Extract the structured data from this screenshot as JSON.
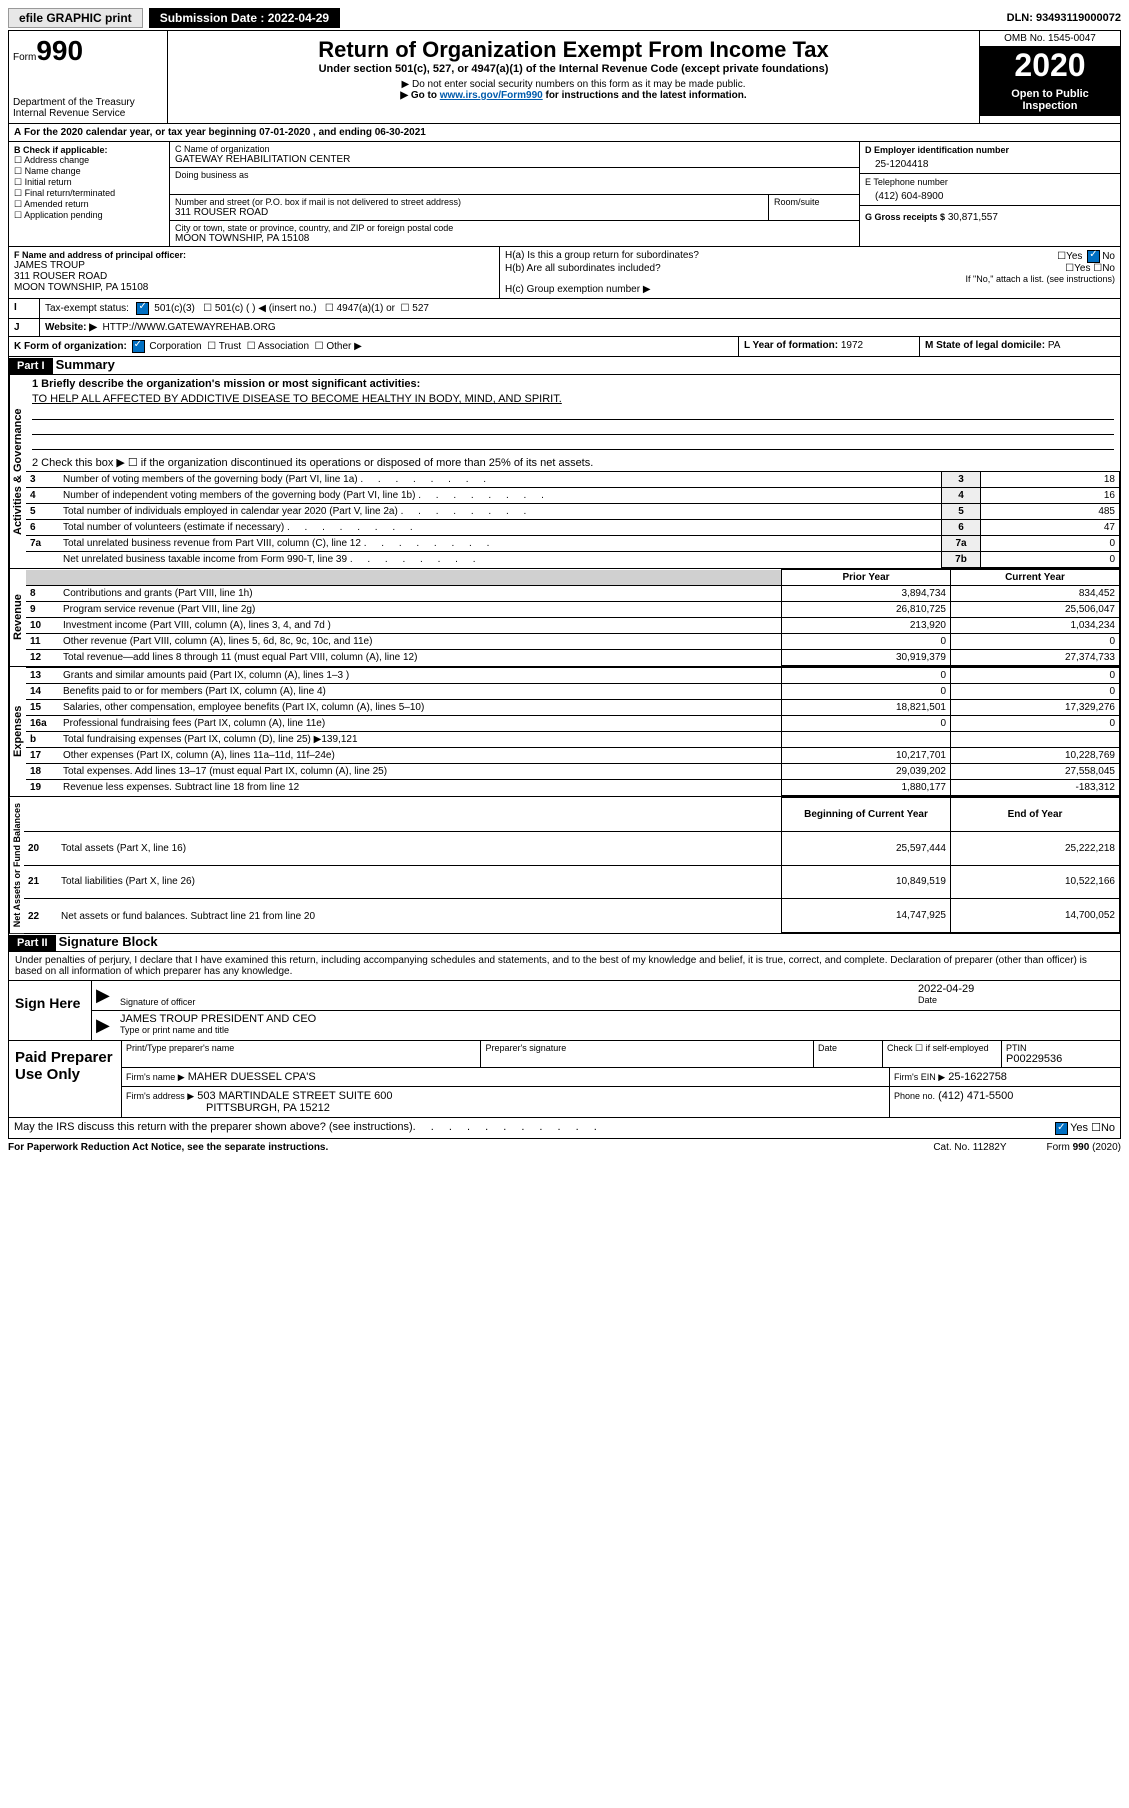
{
  "topbar": {
    "efile": "efile GRAPHIC print",
    "subdate_label": "Submission Date : 2022-04-29",
    "dln": "DLN: 93493119000072"
  },
  "header": {
    "form_word": "Form",
    "form_num": "990",
    "title": "Return of Organization Exempt From Income Tax",
    "sub1": "Under section 501(c), 527, or 4947(a)(1) of the Internal Revenue Code (except private foundations)",
    "sub2": "▶ Do not enter social security numbers on this form as it may be made public.",
    "sub3_pre": "▶ Go to ",
    "sub3_link": "www.irs.gov/Form990",
    "sub3_post": " for instructions and the latest information.",
    "agency1": "Department of the Treasury",
    "agency2": "Internal Revenue Service",
    "omb": "OMB No. 1545-0047",
    "year": "2020",
    "open": "Open to Public Inspection"
  },
  "A": {
    "text": "For the 2020 calendar year, or tax year beginning 07-01-2020    , and ending 06-30-2021"
  },
  "B": {
    "lbl": "B Check if applicable:",
    "opts": [
      "Address change",
      "Name change",
      "Initial return",
      "Final return/terminated",
      "Amended return",
      "Application pending"
    ]
  },
  "C": {
    "name_lbl": "C Name of organization",
    "name": "GATEWAY REHABILITATION CENTER",
    "dba_lbl": "Doing business as",
    "addr_lbl": "Number and street (or P.O. box if mail is not delivered to street address)",
    "addr": "311 ROUSER ROAD",
    "room_lbl": "Room/suite",
    "city_lbl": "City or town, state or province, country, and ZIP or foreign postal code",
    "city": "MOON TOWNSHIP, PA  15108"
  },
  "D": {
    "lbl": "D Employer identification number",
    "val": "25-1204418"
  },
  "E": {
    "lbl": "E Telephone number",
    "val": "(412) 604-8900"
  },
  "G": {
    "lbl": "G Gross receipts $",
    "val": "30,871,557"
  },
  "F": {
    "lbl": "F  Name and address of principal officer:",
    "name": "JAMES TROUP",
    "addr1": "311 ROUSER ROAD",
    "addr2": "MOON TOWNSHIP, PA  15108"
  },
  "H": {
    "a": "H(a)  Is this a group return for subordinates?",
    "b": "H(b)  Are all subordinates included?",
    "b2": "If \"No,\" attach a list. (see instructions)",
    "c": "H(c)  Group exemption number ▶",
    "yes": "Yes",
    "no": "No"
  },
  "I": {
    "lbl": "Tax-exempt status:",
    "o1": "501(c)(3)",
    "o2": "501(c) (  ) ◀ (insert no.)",
    "o3": "4947(a)(1) or",
    "o4": "527"
  },
  "J": {
    "lbl": "Website: ▶",
    "val": "HTTP://WWW.GATEWAYREHAB.ORG"
  },
  "K": {
    "lbl": "K Form of organization:",
    "o1": "Corporation",
    "o2": "Trust",
    "o3": "Association",
    "o4": "Other ▶"
  },
  "L": {
    "lbl": "L Year of formation:",
    "val": "1972"
  },
  "M": {
    "lbl": "M State of legal domicile:",
    "val": "PA"
  },
  "part1": {
    "hdr": "Part I",
    "title": "Summary"
  },
  "summary": {
    "q1": "1   Briefly describe the organization's mission or most significant activities:",
    "mission": "TO HELP ALL AFFECTED BY ADDICTIVE DISEASE TO BECOME HEALTHY IN BODY, MIND, AND SPIRIT.",
    "q2": "2   Check this box ▶ ☐  if the organization discontinued its operations or disposed of more than 25% of its net assets.",
    "lines": [
      {
        "n": "3",
        "t": "Number of voting members of the governing body (Part VI, line 1a)",
        "box": "3",
        "v": "18"
      },
      {
        "n": "4",
        "t": "Number of independent voting members of the governing body (Part VI, line 1b)",
        "box": "4",
        "v": "16"
      },
      {
        "n": "5",
        "t": "Total number of individuals employed in calendar year 2020 (Part V, line 2a)",
        "box": "5",
        "v": "485"
      },
      {
        "n": "6",
        "t": "Total number of volunteers (estimate if necessary)",
        "box": "6",
        "v": "47"
      },
      {
        "n": "7a",
        "t": "Total unrelated business revenue from Part VIII, column (C), line 12",
        "box": "7a",
        "v": "0"
      },
      {
        "n": "",
        "t": "Net unrelated business taxable income from Form 990-T, line 39",
        "box": "7b",
        "v": "0"
      }
    ],
    "col_prior": "Prior Year",
    "col_curr": "Current Year",
    "rev": [
      {
        "n": "8",
        "t": "Contributions and grants (Part VIII, line 1h)",
        "p": "3,894,734",
        "c": "834,452"
      },
      {
        "n": "9",
        "t": "Program service revenue (Part VIII, line 2g)",
        "p": "26,810,725",
        "c": "25,506,047"
      },
      {
        "n": "10",
        "t": "Investment income (Part VIII, column (A), lines 3, 4, and 7d )",
        "p": "213,920",
        "c": "1,034,234"
      },
      {
        "n": "11",
        "t": "Other revenue (Part VIII, column (A), lines 5, 6d, 8c, 9c, 10c, and 11e)",
        "p": "0",
        "c": "0"
      },
      {
        "n": "12",
        "t": "Total revenue—add lines 8 through 11 (must equal Part VIII, column (A), line 12)",
        "p": "30,919,379",
        "c": "27,374,733"
      }
    ],
    "exp": [
      {
        "n": "13",
        "t": "Grants and similar amounts paid (Part IX, column (A), lines 1–3 )",
        "p": "0",
        "c": "0"
      },
      {
        "n": "14",
        "t": "Benefits paid to or for members (Part IX, column (A), line 4)",
        "p": "0",
        "c": "0"
      },
      {
        "n": "15",
        "t": "Salaries, other compensation, employee benefits (Part IX, column (A), lines 5–10)",
        "p": "18,821,501",
        "c": "17,329,276"
      },
      {
        "n": "16a",
        "t": "Professional fundraising fees (Part IX, column (A), line 11e)",
        "p": "0",
        "c": "0"
      },
      {
        "n": "b",
        "t": "Total fundraising expenses (Part IX, column (D), line 25) ▶139,121",
        "p": "",
        "c": ""
      },
      {
        "n": "17",
        "t": "Other expenses (Part IX, column (A), lines 11a–11d, 11f–24e)",
        "p": "10,217,701",
        "c": "10,228,769"
      },
      {
        "n": "18",
        "t": "Total expenses. Add lines 13–17 (must equal Part IX, column (A), line 25)",
        "p": "29,039,202",
        "c": "27,558,045"
      },
      {
        "n": "19",
        "t": "Revenue less expenses. Subtract line 18 from line 12",
        "p": "1,880,177",
        "c": "-183,312"
      }
    ],
    "col_begin": "Beginning of Current Year",
    "col_end": "End of Year",
    "net": [
      {
        "n": "20",
        "t": "Total assets (Part X, line 16)",
        "p": "25,597,444",
        "c": "25,222,218"
      },
      {
        "n": "21",
        "t": "Total liabilities (Part X, line 26)",
        "p": "10,849,519",
        "c": "10,522,166"
      },
      {
        "n": "22",
        "t": "Net assets or fund balances. Subtract line 21 from line 20",
        "p": "14,747,925",
        "c": "14,700,052"
      }
    ],
    "vlabels": {
      "gov": "Activities & Governance",
      "rev": "Revenue",
      "exp": "Expenses",
      "net": "Net Assets or Fund Balances"
    }
  },
  "part2": {
    "hdr": "Part II",
    "title": "Signature Block",
    "decl": "Under penalties of perjury, I declare that I have examined this return, including accompanying schedules and statements, and to the best of my knowledge and belief, it is true, correct, and complete. Declaration of preparer (other than officer) is based on all information of which preparer has any knowledge."
  },
  "sign": {
    "here": "Sign Here",
    "sig_lbl": "Signature of officer",
    "date_lbl": "Date",
    "date": "2022-04-29",
    "name": "JAMES TROUP  PRESIDENT AND CEO",
    "name_lbl": "Type or print name and title"
  },
  "paid": {
    "title": "Paid Preparer Use Only",
    "cols": [
      "Print/Type preparer's name",
      "Preparer's signature",
      "Date"
    ],
    "check": "Check ☐ if self-employed",
    "ptin_lbl": "PTIN",
    "ptin": "P00229536",
    "firm_name_lbl": "Firm's name  ▶",
    "firm_name": "MAHER DUESSEL CPA'S",
    "firm_ein_lbl": "Firm's EIN ▶",
    "firm_ein": "25-1622758",
    "firm_addr_lbl": "Firm's address ▶",
    "firm_addr": "503 MARTINDALE STREET SUITE 600",
    "firm_city": "PITTSBURGH, PA  15212",
    "phone_lbl": "Phone no.",
    "phone": "(412) 471-5500"
  },
  "footer": {
    "discuss": "May the IRS discuss this return with the preparer shown above? (see instructions)",
    "paperwork": "For Paperwork Reduction Act Notice, see the separate instructions.",
    "cat": "Cat. No. 11282Y",
    "form": "Form 990 (2020)",
    "yes": "Yes",
    "no": "No"
  }
}
